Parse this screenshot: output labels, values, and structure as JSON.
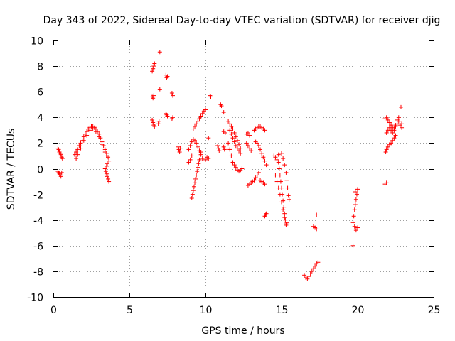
{
  "chart_data": {
    "type": "scatter",
    "title": "Day 343 of 2022, Sidereal Day-to-day VTEC variation (SDTVAR) for receiver djig",
    "xlabel": "GPS time / hours",
    "ylabel": "SDTVAR / TECUs",
    "xlim": [
      0,
      25
    ],
    "ylim": [
      -10,
      10
    ],
    "xticks": [
      0,
      5,
      10,
      15,
      20,
      25
    ],
    "yticks": [
      -10,
      -8,
      -6,
      -4,
      -2,
      0,
      2,
      4,
      6,
      8,
      10
    ],
    "xtick_labels": [
      "0",
      "5",
      "10",
      "15",
      "20",
      "25"
    ],
    "ytick_labels": [
      "-10",
      "-8",
      "-6",
      "-4",
      "-2",
      "0",
      "2",
      "4",
      "6",
      "8",
      "10"
    ],
    "grid": true,
    "marker": "+",
    "marker_color": "#ff0000",
    "series": [
      {
        "name": "SDTVAR",
        "points": [
          [
            0.3,
            1.6
          ],
          [
            0.35,
            1.5
          ],
          [
            0.4,
            1.3
          ],
          [
            0.45,
            1.2
          ],
          [
            0.5,
            1.1
          ],
          [
            0.55,
            0.9
          ],
          [
            0.6,
            0.8
          ],
          [
            0.3,
            -0.2
          ],
          [
            0.35,
            -0.3
          ],
          [
            0.4,
            -0.4
          ],
          [
            0.45,
            -0.5
          ],
          [
            0.5,
            -0.6
          ],
          [
            0.55,
            -0.3
          ],
          [
            1.4,
            1.1
          ],
          [
            1.5,
            1.3
          ],
          [
            1.6,
            1.5
          ],
          [
            1.7,
            1.8
          ],
          [
            1.8,
            2.0
          ],
          [
            1.9,
            2.2
          ],
          [
            2.0,
            2.5
          ],
          [
            2.1,
            2.7
          ],
          [
            2.2,
            2.9
          ],
          [
            2.3,
            3.1
          ],
          [
            2.4,
            3.2
          ],
          [
            2.5,
            3.3
          ],
          [
            2.6,
            3.3
          ],
          [
            2.7,
            3.2
          ],
          [
            2.8,
            3.1
          ],
          [
            2.9,
            2.9
          ],
          [
            3.0,
            2.7
          ],
          [
            3.1,
            2.4
          ],
          [
            3.2,
            2.1
          ],
          [
            3.3,
            1.8
          ],
          [
            3.4,
            1.5
          ],
          [
            3.5,
            1.2
          ],
          [
            3.6,
            0.9
          ],
          [
            3.65,
            0.6
          ],
          [
            1.5,
            0.8
          ],
          [
            1.6,
            1.1
          ],
          [
            1.8,
            1.6
          ],
          [
            2.0,
            2.2
          ],
          [
            2.2,
            2.6
          ],
          [
            2.4,
            3.0
          ],
          [
            2.6,
            3.1
          ],
          [
            2.8,
            2.9
          ],
          [
            3.0,
            2.5
          ],
          [
            3.2,
            1.9
          ],
          [
            3.4,
            1.3
          ],
          [
            3.5,
            1.0
          ],
          [
            3.4,
            0.0
          ],
          [
            3.45,
            -0.2
          ],
          [
            3.5,
            -0.4
          ],
          [
            3.55,
            -0.6
          ],
          [
            3.6,
            -0.8
          ],
          [
            3.65,
            -1.0
          ],
          [
            3.5,
            0.2
          ],
          [
            3.55,
            0.4
          ],
          [
            6.5,
            7.6
          ],
          [
            6.55,
            7.8
          ],
          [
            6.6,
            8.0
          ],
          [
            6.65,
            8.2
          ],
          [
            6.5,
            5.6
          ],
          [
            6.55,
            5.5
          ],
          [
            6.6,
            5.7
          ],
          [
            6.5,
            3.8
          ],
          [
            6.55,
            3.6
          ],
          [
            6.6,
            3.4
          ],
          [
            6.65,
            3.3
          ],
          [
            6.9,
            3.5
          ],
          [
            6.95,
            3.7
          ],
          [
            7.0,
            9.1
          ],
          [
            7.0,
            6.2
          ],
          [
            7.4,
            7.3
          ],
          [
            7.45,
            7.1
          ],
          [
            7.5,
            7.2
          ],
          [
            7.4,
            4.3
          ],
          [
            7.45,
            4.2
          ],
          [
            7.5,
            4.1
          ],
          [
            7.8,
            5.9
          ],
          [
            7.85,
            5.7
          ],
          [
            7.8,
            3.9
          ],
          [
            7.85,
            4.0
          ],
          [
            8.2,
            1.7
          ],
          [
            8.25,
            1.5
          ],
          [
            8.3,
            1.3
          ],
          [
            8.35,
            1.6
          ],
          [
            8.9,
            0.5
          ],
          [
            9.0,
            0.7
          ],
          [
            9.1,
            1.0
          ],
          [
            8.9,
            1.5
          ],
          [
            9.0,
            1.8
          ],
          [
            9.1,
            2.1
          ],
          [
            9.2,
            2.3
          ],
          [
            9.3,
            2.2
          ],
          [
            9.4,
            2.0
          ],
          [
            9.5,
            1.7
          ],
          [
            9.6,
            1.4
          ],
          [
            9.7,
            1.1
          ],
          [
            9.8,
            0.8
          ],
          [
            9.2,
            3.1
          ],
          [
            9.3,
            3.3
          ],
          [
            9.4,
            3.5
          ],
          [
            9.5,
            3.7
          ],
          [
            9.6,
            3.9
          ],
          [
            9.7,
            4.1
          ],
          [
            9.8,
            4.3
          ],
          [
            9.9,
            4.5
          ],
          [
            10.0,
            4.6
          ],
          [
            9.1,
            -2.3
          ],
          [
            9.15,
            -2.0
          ],
          [
            9.2,
            -1.7
          ],
          [
            9.25,
            -1.4
          ],
          [
            9.3,
            -1.1
          ],
          [
            9.35,
            -0.8
          ],
          [
            9.4,
            -0.5
          ],
          [
            9.45,
            -0.2
          ],
          [
            9.5,
            0.1
          ],
          [
            9.55,
            0.4
          ],
          [
            9.6,
            0.7
          ],
          [
            9.65,
            1.0
          ],
          [
            9.7,
            1.3
          ],
          [
            10.0,
            0.7
          ],
          [
            10.1,
            0.9
          ],
          [
            10.2,
            0.8
          ],
          [
            10.3,
            5.7
          ],
          [
            10.35,
            5.6
          ],
          [
            10.2,
            2.4
          ],
          [
            10.8,
            1.8
          ],
          [
            10.85,
            1.6
          ],
          [
            10.9,
            1.4
          ],
          [
            11.0,
            5.0
          ],
          [
            11.05,
            4.9
          ],
          [
            11.2,
            1.7
          ],
          [
            11.25,
            1.5
          ],
          [
            11.2,
            4.4
          ],
          [
            11.2,
            2.9
          ],
          [
            11.3,
            2.8
          ],
          [
            11.5,
            3.7
          ],
          [
            11.6,
            3.5
          ],
          [
            11.7,
            3.3
          ],
          [
            11.8,
            3.1
          ],
          [
            11.9,
            2.8
          ],
          [
            12.0,
            2.5
          ],
          [
            12.1,
            2.2
          ],
          [
            12.2,
            1.9
          ],
          [
            12.3,
            1.6
          ],
          [
            11.5,
            2.0
          ],
          [
            11.6,
            1.5
          ],
          [
            11.7,
            1.0
          ],
          [
            11.8,
            0.5
          ],
          [
            11.9,
            0.3
          ],
          [
            12.0,
            0.1
          ],
          [
            12.1,
            -0.1
          ],
          [
            12.2,
            -0.2
          ],
          [
            12.3,
            -0.1
          ],
          [
            12.4,
            0.0
          ],
          [
            11.6,
            3.0
          ],
          [
            11.7,
            2.7
          ],
          [
            11.8,
            2.4
          ],
          [
            11.9,
            2.1
          ],
          [
            12.0,
            1.8
          ],
          [
            12.1,
            1.6
          ],
          [
            12.2,
            1.4
          ],
          [
            12.3,
            1.2
          ],
          [
            12.8,
            -1.3
          ],
          [
            12.9,
            -1.2
          ],
          [
            13.0,
            -1.1
          ],
          [
            13.1,
            -1.0
          ],
          [
            13.2,
            -0.9
          ],
          [
            13.3,
            -0.7
          ],
          [
            13.4,
            -0.5
          ],
          [
            13.5,
            -0.3
          ],
          [
            12.7,
            2.7
          ],
          [
            12.8,
            2.8
          ],
          [
            12.9,
            2.6
          ],
          [
            12.7,
            2.0
          ],
          [
            12.8,
            1.8
          ],
          [
            12.9,
            1.6
          ],
          [
            13.0,
            1.4
          ],
          [
            13.2,
            3.0
          ],
          [
            13.3,
            3.1
          ],
          [
            13.4,
            3.2
          ],
          [
            13.5,
            3.3
          ],
          [
            13.6,
            3.3
          ],
          [
            13.7,
            3.2
          ],
          [
            13.8,
            3.1
          ],
          [
            13.9,
            3.0
          ],
          [
            13.3,
            2.1
          ],
          [
            13.4,
            2.0
          ],
          [
            13.5,
            1.8
          ],
          [
            13.6,
            1.5
          ],
          [
            13.7,
            1.2
          ],
          [
            13.8,
            0.9
          ],
          [
            13.9,
            0.6
          ],
          [
            14.0,
            0.3
          ],
          [
            13.6,
            -0.9
          ],
          [
            13.7,
            -1.0
          ],
          [
            13.8,
            -1.1
          ],
          [
            13.9,
            -1.2
          ],
          [
            13.9,
            -3.7
          ],
          [
            13.95,
            -3.6
          ],
          [
            14.0,
            -3.5
          ],
          [
            14.5,
            1.0
          ],
          [
            14.6,
            0.9
          ],
          [
            14.7,
            0.7
          ],
          [
            14.8,
            1.1
          ],
          [
            14.8,
            0.5
          ],
          [
            14.85,
            0.0
          ],
          [
            14.9,
            -0.5
          ],
          [
            14.95,
            -1.0
          ],
          [
            15.0,
            -1.5
          ],
          [
            15.05,
            -2.0
          ],
          [
            15.1,
            -2.5
          ],
          [
            15.15,
            -3.0
          ],
          [
            15.2,
            -3.5
          ],
          [
            15.25,
            -4.0
          ],
          [
            15.3,
            -4.3
          ],
          [
            15.35,
            -4.2
          ],
          [
            14.6,
            -0.5
          ],
          [
            14.7,
            -1.0
          ],
          [
            14.8,
            -1.5
          ],
          [
            14.9,
            -2.0
          ],
          [
            15.0,
            -2.6
          ],
          [
            15.1,
            -3.2
          ],
          [
            15.2,
            -3.8
          ],
          [
            15.3,
            -4.4
          ],
          [
            15.0,
            1.2
          ],
          [
            15.1,
            0.8
          ],
          [
            15.2,
            0.3
          ],
          [
            15.3,
            -0.3
          ],
          [
            15.35,
            -0.9
          ],
          [
            15.4,
            -1.5
          ],
          [
            15.45,
            -2.1
          ],
          [
            15.5,
            -2.4
          ],
          [
            16.5,
            -8.3
          ],
          [
            16.6,
            -8.5
          ],
          [
            16.7,
            -8.6
          ],
          [
            16.8,
            -8.4
          ],
          [
            16.9,
            -8.2
          ],
          [
            17.0,
            -8.0
          ],
          [
            17.1,
            -7.8
          ],
          [
            17.2,
            -7.6
          ],
          [
            17.3,
            -7.4
          ],
          [
            17.4,
            -7.3
          ],
          [
            17.1,
            -4.5
          ],
          [
            17.2,
            -4.6
          ],
          [
            17.3,
            -4.7
          ],
          [
            17.3,
            -3.6
          ],
          [
            19.7,
            -6.0
          ],
          [
            19.75,
            -3.7
          ],
          [
            19.7,
            -4.2
          ],
          [
            19.8,
            -4.5
          ],
          [
            19.9,
            -4.8
          ],
          [
            20.0,
            -4.6
          ],
          [
            19.8,
            -3.2
          ],
          [
            19.85,
            -2.8
          ],
          [
            19.9,
            -2.4
          ],
          [
            19.95,
            -2.0
          ],
          [
            20.0,
            -1.6
          ],
          [
            19.85,
            -1.8
          ],
          [
            21.8,
            -1.2
          ],
          [
            21.9,
            -1.1
          ],
          [
            21.85,
            1.3
          ],
          [
            21.9,
            1.5
          ],
          [
            22.0,
            1.7
          ],
          [
            22.1,
            1.9
          ],
          [
            22.2,
            2.0
          ],
          [
            22.3,
            2.2
          ],
          [
            22.4,
            2.4
          ],
          [
            22.5,
            2.6
          ],
          [
            21.8,
            3.9
          ],
          [
            21.9,
            4.0
          ],
          [
            22.0,
            3.8
          ],
          [
            22.1,
            3.6
          ],
          [
            22.2,
            3.4
          ],
          [
            22.3,
            3.2
          ],
          [
            22.4,
            3.1
          ],
          [
            22.5,
            3.3
          ],
          [
            22.6,
            3.5
          ],
          [
            22.7,
            3.7
          ],
          [
            22.8,
            3.4
          ],
          [
            22.9,
            3.2
          ],
          [
            21.9,
            2.8
          ],
          [
            22.0,
            3.0
          ],
          [
            22.1,
            3.2
          ],
          [
            22.2,
            3.0
          ],
          [
            22.3,
            2.8
          ],
          [
            22.4,
            3.0
          ],
          [
            22.5,
            3.4
          ],
          [
            22.6,
            3.8
          ],
          [
            22.7,
            4.0
          ],
          [
            22.85,
            4.8
          ],
          [
            22.9,
            3.5
          ]
        ]
      }
    ]
  }
}
